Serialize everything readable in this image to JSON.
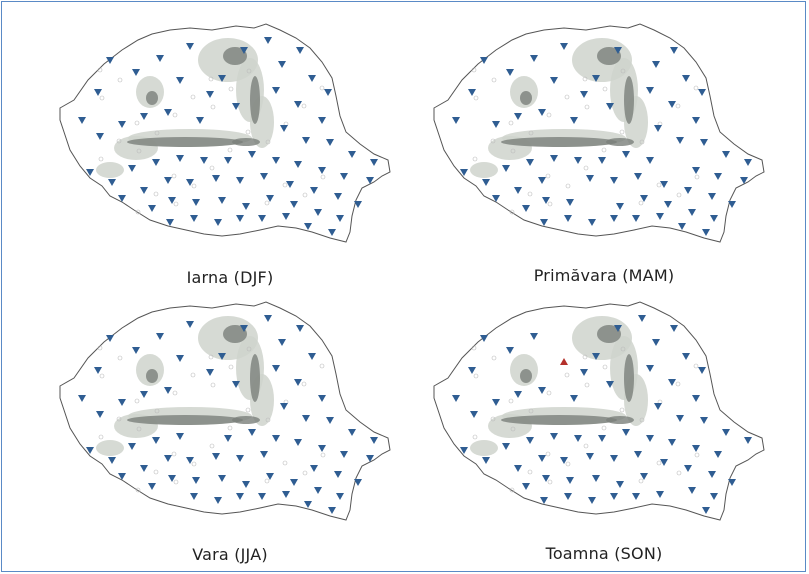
{
  "panels": [
    {
      "caption": "Iarna (DJF)",
      "upward_markers": 0
    },
    {
      "caption": "Primăvara (MAM)",
      "upward_markers": 0
    },
    {
      "caption": "Vara (JJA)",
      "upward_markers": 0
    },
    {
      "caption": "Toamna (SON)",
      "upward_markers": 1
    }
  ],
  "colors": {
    "down_marker": "#2f5d92",
    "up_marker": "#b4302b",
    "frame": "#5a8ac6"
  }
}
